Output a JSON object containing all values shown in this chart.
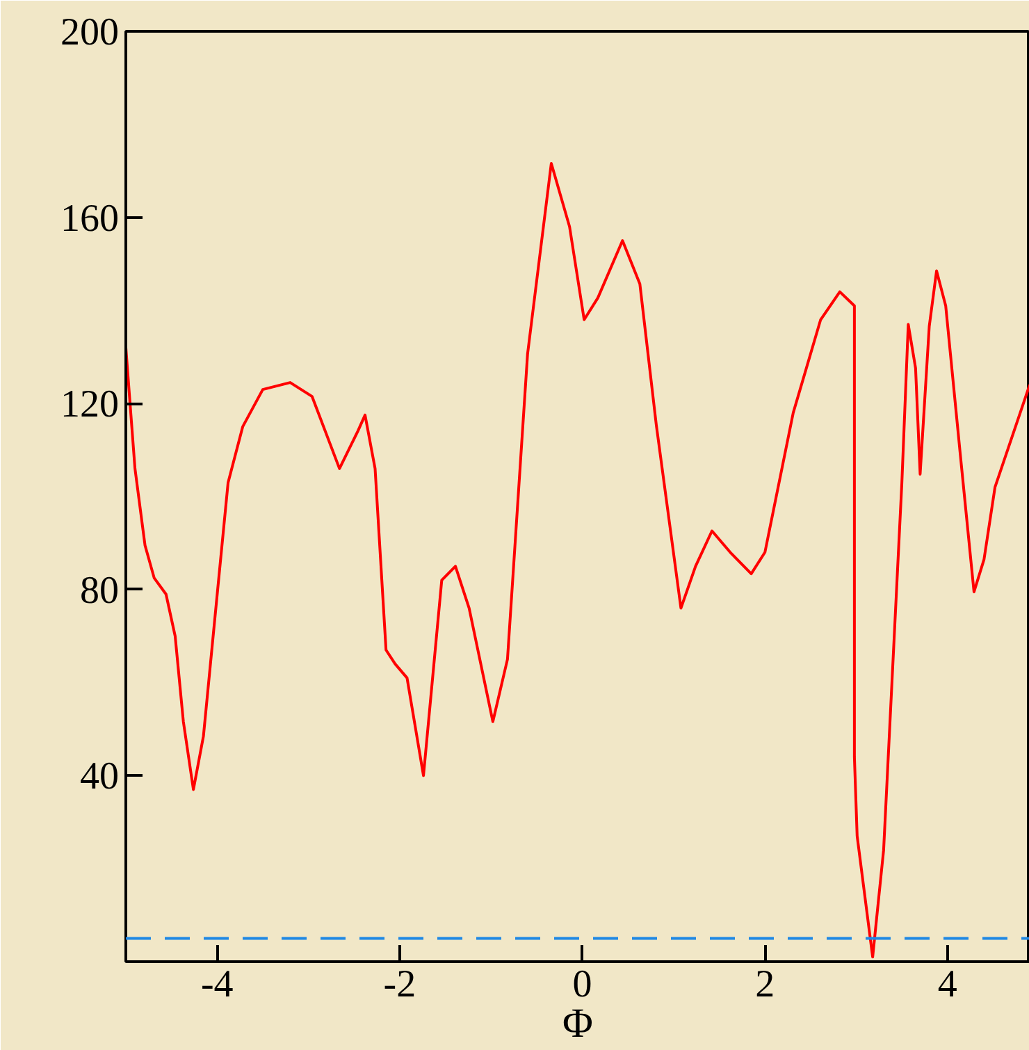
{
  "chart_data": {
    "type": "line",
    "xlabel": "Φ",
    "xlim": [
      -5,
      4.9
    ],
    "ylim": [
      0,
      200
    ],
    "xticks": [
      -4,
      -2,
      0,
      2,
      4
    ],
    "yticks": [
      40,
      80,
      120,
      160,
      200
    ],
    "grid": false,
    "marker": "none",
    "line_style": "solid",
    "series": [
      {
        "color": "#ff0000",
        "x": [
          -5.0,
          -4.9,
          -4.79,
          -4.69,
          -4.56,
          -4.46,
          -4.37,
          -4.26,
          -4.15,
          -4.03,
          -3.88,
          -3.72,
          -3.5,
          -3.2,
          -2.96,
          -2.66,
          -2.46,
          -2.38,
          -2.27,
          -2.15,
          -2.05,
          -1.92,
          -1.74,
          -1.54,
          -1.39,
          -1.24,
          -0.98,
          -0.82,
          -0.6,
          -0.34,
          -0.14,
          0.02,
          0.17,
          0.44,
          0.63,
          0.81,
          1.08,
          1.24,
          1.42,
          1.62,
          1.85,
          2.0,
          2.31,
          2.61,
          2.82,
          2.98,
          2.98,
          3.01,
          3.18,
          3.3,
          3.5,
          3.57,
          3.65,
          3.7,
          3.8,
          3.88,
          3.98,
          4.14,
          4.29,
          4.4,
          4.52,
          4.9
        ],
        "values": [
          132,
          106,
          89.5,
          82.5,
          79,
          70,
          51.6,
          37,
          48.5,
          72.8,
          103,
          115,
          123,
          124.5,
          121.5,
          106,
          114,
          117.5,
          106,
          67,
          64,
          61,
          40,
          82,
          85,
          76,
          51.6,
          65,
          130.6,
          171.6,
          158,
          138,
          142.7,
          155,
          145.7,
          115.4,
          76,
          85,
          92.6,
          88,
          83.4,
          88,
          118,
          138,
          144,
          141,
          44,
          27,
          1,
          24,
          103,
          137,
          127.6,
          104.8,
          136.6,
          148.5,
          141,
          109,
          79.5,
          86.5,
          102,
          124
        ]
      }
    ],
    "ref_lines": [
      {
        "axis": "y",
        "value": 5,
        "color": "#1e88e5",
        "line_style": "dashed"
      }
    ]
  }
}
